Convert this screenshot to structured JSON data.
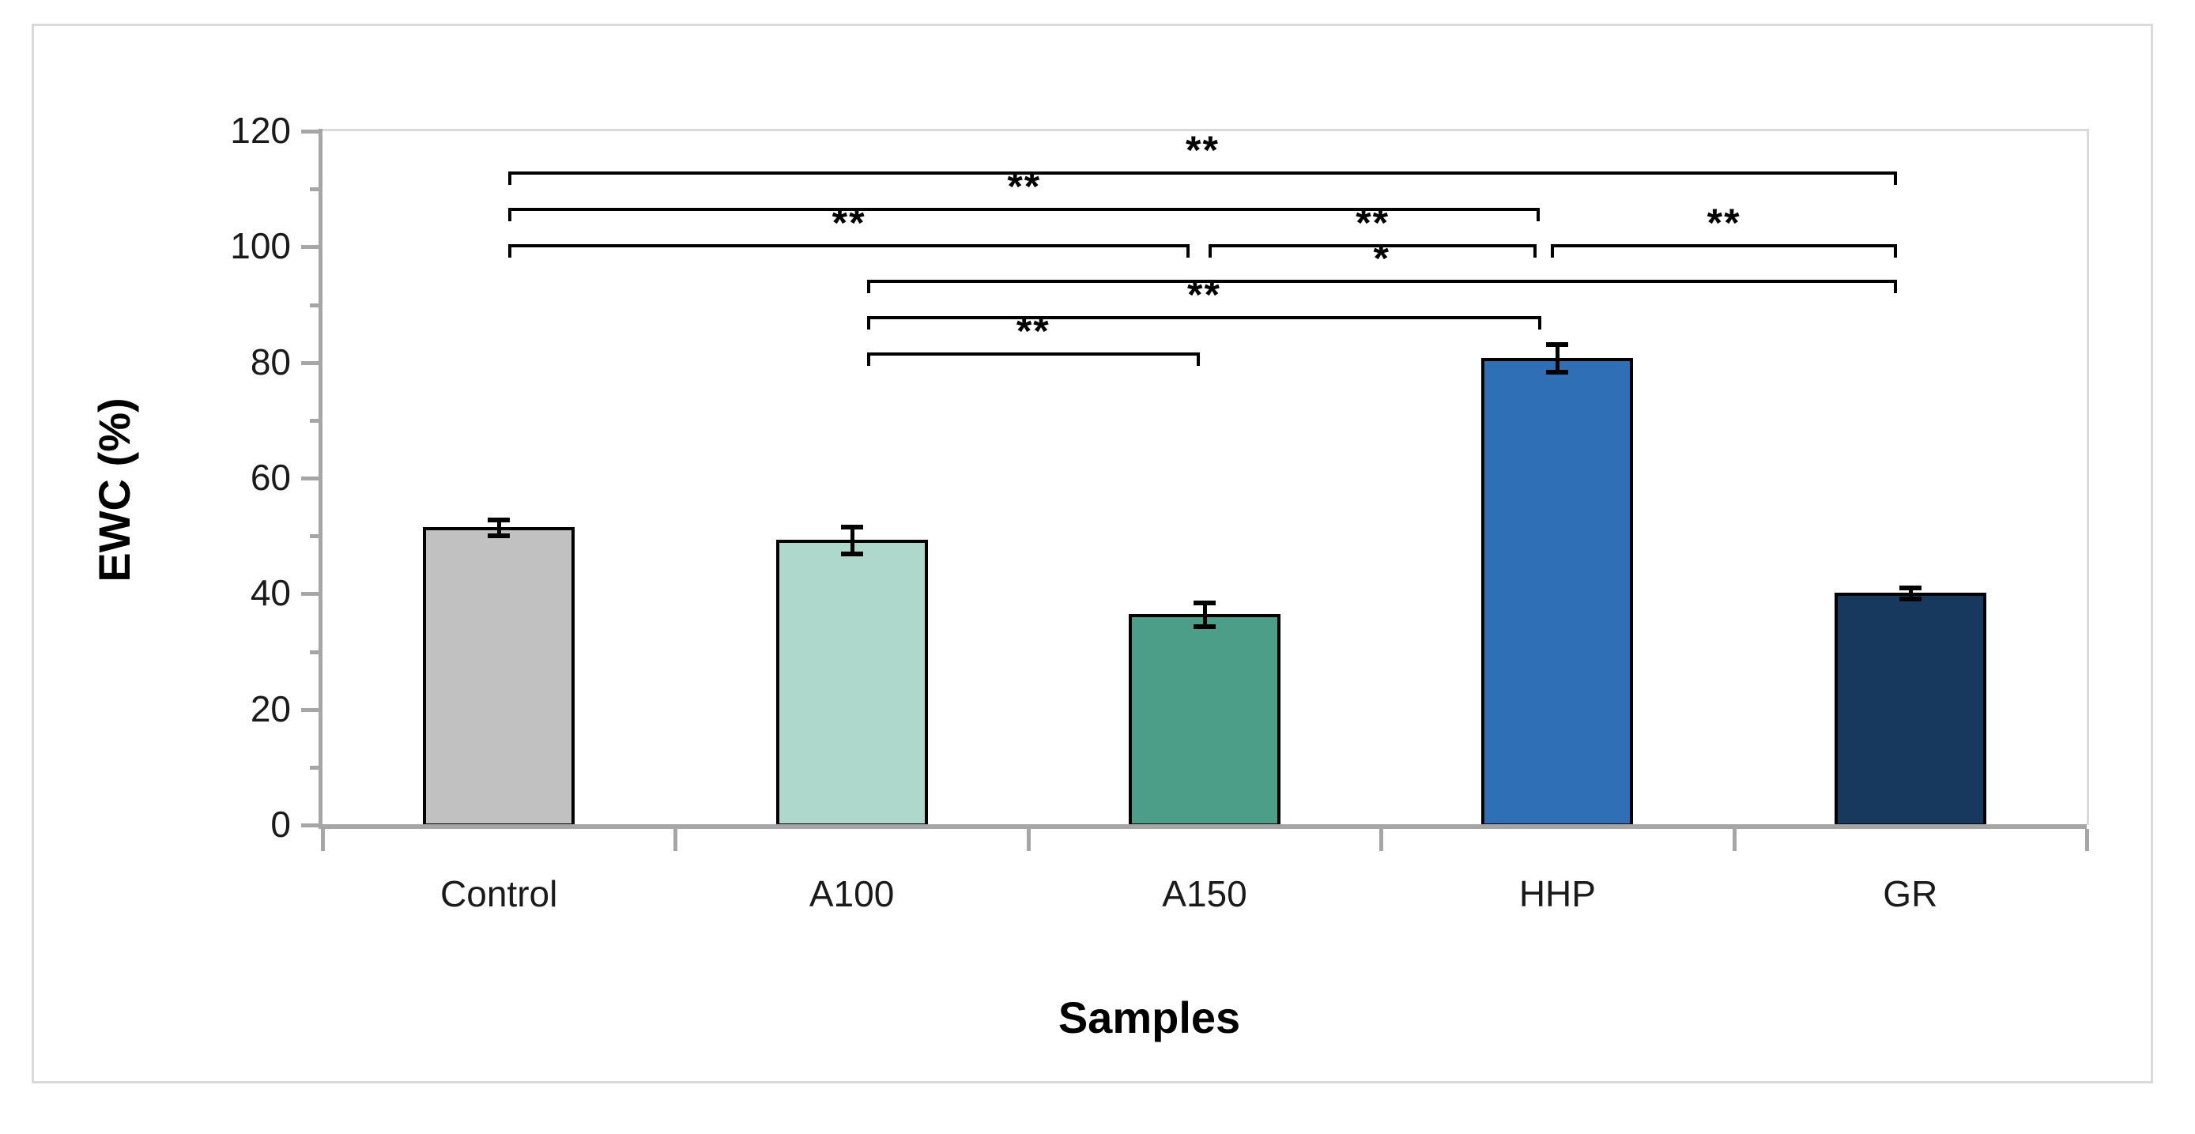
{
  "figure": {
    "background": "#ffffff",
    "border_color": "#d9d9d9"
  },
  "chart_data": {
    "type": "bar",
    "title": "",
    "xlabel": "Samples",
    "ylabel": "EWC (%)",
    "categories": [
      "Control",
      "A100",
      "A150",
      "HHP",
      "GR"
    ],
    "values": [
      51.5,
      49.3,
      36.5,
      80.8,
      40.2
    ],
    "error_bars": [
      1.4,
      2.3,
      2.1,
      2.4,
      1.0
    ],
    "bar_colors": [
      "#c1c1c1",
      "#aed8cb",
      "#4d9e88",
      "#2e6fb5",
      "#17395e"
    ],
    "bar_border_color": "#000000",
    "ylim": [
      0,
      120
    ],
    "yticks": [
      "0",
      "20",
      "40",
      "60",
      "80",
      "100",
      "120"
    ],
    "ytick_step": 20,
    "minor_tick_step": 10,
    "grid": false,
    "legend": "none",
    "axis_color": "#a6a6a6",
    "significance_brackets": [
      {
        "from": "Control",
        "to": "GR",
        "label": "**",
        "row": 1
      },
      {
        "from": "Control",
        "to": "HHP",
        "label": "**",
        "row": 2
      },
      {
        "from": "Control",
        "to": "A150",
        "label": "**",
        "row": 3
      },
      {
        "from": "A150",
        "to": "HHP",
        "label": "**",
        "row": 3
      },
      {
        "from": "HHP",
        "to": "GR",
        "label": "**",
        "row": 3
      },
      {
        "from": "A100",
        "to": "GR",
        "label": "*",
        "row": 4
      },
      {
        "from": "A100",
        "to": "HHP",
        "label": "**",
        "row": 5
      },
      {
        "from": "A100",
        "to": "A150",
        "label": "**",
        "row": 6
      }
    ]
  }
}
